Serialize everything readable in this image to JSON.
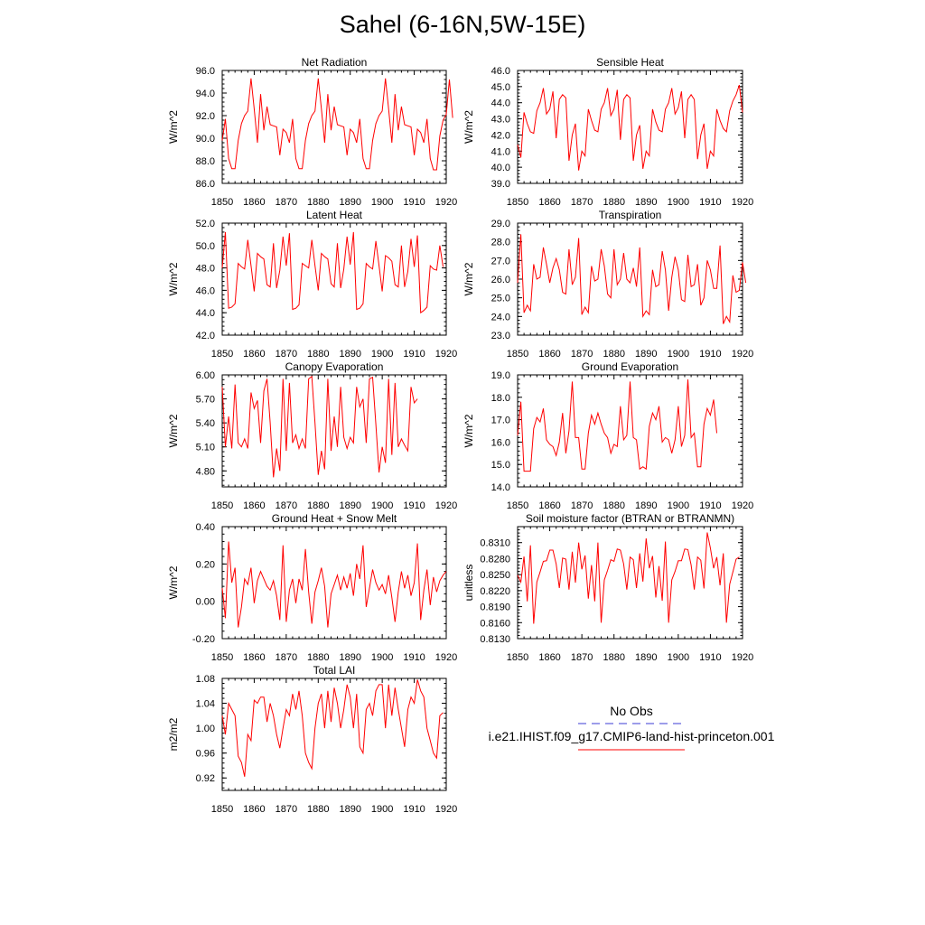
{
  "title": "Sahel (6-16N,5W-15E)",
  "legend": {
    "obs_label": "No Obs",
    "obs_color": "#3b3bd6",
    "model_label": "i.e21.IHIST.f09_g17.CMIP6-land-hist-princeton.001",
    "model_color": "#ff0000"
  },
  "chart_data": [
    {
      "type": "line",
      "title": "Net Radiation",
      "ylabel": "W/m^2",
      "xlim": [
        1850,
        1920
      ],
      "ylim": [
        86,
        96
      ],
      "xticks": [
        "1850",
        "1860",
        "1870",
        "1880",
        "1890",
        "1900",
        "1910",
        "1920"
      ],
      "yticks": [
        "86.0",
        "88.0",
        "90.0",
        "92.0",
        "94.0",
        "96.0"
      ],
      "series": [
        {
          "name": "i.e21.IHIST.f09_g17.CMIP6-land-hist-princeton.001",
          "x_start": 1850,
          "values": [
            89.8,
            91.7,
            88.2,
            87.3,
            87.3,
            89.8,
            91.3,
            92.0,
            92.4,
            95.3,
            92.6,
            89.6,
            93.9,
            90.7,
            92.8,
            91.2,
            91.1,
            91.0,
            88.5,
            90.8,
            90.5,
            89.6,
            91.7,
            88.2,
            87.3,
            87.3,
            89.8,
            91.3,
            92.0,
            92.4,
            95.3,
            92.6,
            89.6,
            93.9,
            90.7,
            92.8,
            91.2,
            91.1,
            91.0,
            88.5,
            90.8,
            90.5,
            89.6,
            91.7,
            88.2,
            87.3,
            87.3,
            89.8,
            91.3,
            92.0,
            92.4,
            95.3,
            92.6,
            89.6,
            93.9,
            90.7,
            92.8,
            91.2,
            91.1,
            91.0,
            88.5,
            90.8,
            90.5,
            89.6,
            91.7,
            88.2,
            87.2,
            87.2,
            90.2,
            91.6,
            92.1,
            95.2,
            91.8
          ]
        }
      ]
    },
    {
      "type": "line",
      "title": "Sensible Heat",
      "ylabel": "W/m^2",
      "xlim": [
        1850,
        1920
      ],
      "ylim": [
        39,
        46
      ],
      "xticks": [
        "1850",
        "1860",
        "1870",
        "1880",
        "1890",
        "1900",
        "1910",
        "1920"
      ],
      "yticks": [
        "39.0",
        "40.0",
        "41.0",
        "42.0",
        "43.0",
        "44.0",
        "45.0",
        "46.0"
      ],
      "series": [
        {
          "name": "i.e21.IHIST.f09_g17.CMIP6-land-hist-princeton.001",
          "x_start": 1850,
          "values": [
            41.4,
            40.6,
            43.4,
            42.7,
            42.2,
            42.1,
            43.5,
            44.0,
            44.9,
            43.3,
            43.6,
            44.7,
            41.8,
            44.2,
            44.5,
            44.3,
            40.4,
            42.0,
            42.7,
            39.8,
            41.0,
            40.7,
            43.6,
            42.9,
            42.3,
            42.2,
            43.6,
            44.0,
            44.9,
            43.2,
            43.6,
            44.8,
            41.7,
            44.2,
            44.5,
            44.3,
            40.4,
            42.0,
            42.6,
            39.9,
            41.0,
            40.7,
            43.6,
            42.8,
            42.3,
            42.2,
            43.6,
            44.0,
            44.9,
            43.3,
            43.7,
            44.7,
            41.8,
            44.2,
            44.5,
            44.2,
            40.5,
            42.0,
            42.7,
            39.9,
            41.0,
            40.7,
            43.6,
            42.9,
            42.4,
            42.2,
            43.5,
            44.1,
            44.5,
            45.1,
            43.4
          ]
        }
      ]
    },
    {
      "type": "line",
      "title": "Latent Heat",
      "ylabel": "W/m^2",
      "xlim": [
        1850,
        1920
      ],
      "ylim": [
        42,
        52
      ],
      "xticks": [
        "1850",
        "1860",
        "1870",
        "1880",
        "1890",
        "1900",
        "1910",
        "1920"
      ],
      "yticks": [
        "42.0",
        "44.0",
        "46.0",
        "48.0",
        "50.0",
        "52.0"
      ],
      "series": [
        {
          "name": "i.e21.IHIST.f09_g17.CMIP6-land-hist-princeton.001",
          "x_start": 1850,
          "values": [
            48.0,
            51.2,
            44.4,
            44.5,
            44.8,
            48.4,
            48.1,
            47.9,
            50.5,
            48.2,
            45.9,
            49.3,
            49.0,
            48.8,
            46.5,
            46.3,
            50.2,
            46.2,
            47.8,
            50.8,
            48.2,
            51.1,
            44.3,
            44.4,
            44.7,
            48.4,
            48.2,
            48.0,
            50.5,
            48.2,
            46.0,
            49.3,
            49.0,
            48.8,
            46.6,
            46.3,
            50.2,
            46.2,
            47.9,
            50.8,
            48.3,
            51.2,
            44.3,
            44.4,
            44.8,
            48.4,
            48.1,
            47.9,
            50.4,
            48.2,
            45.9,
            49.1,
            48.9,
            48.6,
            46.5,
            46.3,
            50.0,
            46.3,
            47.7,
            50.6,
            48.1,
            50.9,
            44.0,
            44.2,
            44.5,
            48.2,
            47.9,
            47.8,
            50.0,
            48.1
          ]
        }
      ]
    },
    {
      "type": "line",
      "title": "Transpiration",
      "ylabel": "W/m^2",
      "xlim": [
        1850,
        1920
      ],
      "ylim": [
        23,
        29
      ],
      "xticks": [
        "1850",
        "1860",
        "1870",
        "1880",
        "1890",
        "1900",
        "1910",
        "1920"
      ],
      "yticks": [
        "23.0",
        "24.0",
        "25.0",
        "26.0",
        "27.0",
        "28.0",
        "29.0"
      ],
      "series": [
        {
          "name": "i.e21.IHIST.f09_g17.CMIP6-land-hist-princeton.001",
          "x_start": 1850,
          "values": [
            25.8,
            28.4,
            24.2,
            24.6,
            24.3,
            26.8,
            26.0,
            26.1,
            27.7,
            26.8,
            25.8,
            26.6,
            27.1,
            26.5,
            25.3,
            25.2,
            27.6,
            25.7,
            26.1,
            28.2,
            24.1,
            24.5,
            24.2,
            26.7,
            25.9,
            26.0,
            27.6,
            26.7,
            25.2,
            25.0,
            27.6,
            25.7,
            26.0,
            27.4,
            26.0,
            25.8,
            26.6,
            25.6,
            27.7,
            24.0,
            24.3,
            24.1,
            26.5,
            25.6,
            25.7,
            27.5,
            26.5,
            24.3,
            26.1,
            27.2,
            26.5,
            24.9,
            24.8,
            27.3,
            25.6,
            25.7,
            26.8,
            24.6,
            25.0,
            27.0,
            26.5,
            25.5,
            25.5,
            27.8,
            23.6,
            24.0,
            23.7,
            26.2,
            25.3,
            25.4,
            26.9,
            25.8
          ]
        }
      ]
    },
    {
      "type": "line",
      "title": "Canopy Evaporation",
      "ylabel": "W/m^2",
      "xlim": [
        1850,
        1920
      ],
      "ylim": [
        4.6,
        6.0
      ],
      "xticks": [
        "1850",
        "1860",
        "1870",
        "1880",
        "1890",
        "1900",
        "1910",
        "1920"
      ],
      "yticks": [
        "4.80",
        "5.10",
        "5.40",
        "5.70",
        "6.00"
      ],
      "series": [
        {
          "name": "i.e21.IHIST.f09_g17.CMIP6-land-hist-princeton.001",
          "x_start": 1850,
          "values": [
            5.85,
            5.1,
            5.48,
            5.08,
            5.88,
            5.15,
            5.1,
            5.2,
            5.08,
            5.78,
            5.58,
            5.68,
            5.15,
            5.8,
            5.95,
            5.4,
            4.72,
            5.08,
            4.8,
            5.95,
            5.05,
            5.9,
            5.15,
            5.25,
            5.08,
            5.2,
            5.08,
            5.95,
            5.98,
            5.4,
            4.75,
            5.05,
            4.82,
            5.95,
            5.05,
            5.48,
            5.1,
            5.85,
            5.22,
            5.08,
            5.22,
            5.15,
            5.85,
            5.6,
            5.7,
            5.15,
            5.95,
            5.97,
            5.38,
            4.78,
            5.1,
            4.9,
            5.95,
            5.0,
            5.9,
            5.1,
            5.2,
            5.12,
            5.05,
            5.85,
            5.65,
            5.7
          ]
        }
      ]
    },
    {
      "type": "line",
      "title": "Ground Evaporation",
      "ylabel": "W/m^2",
      "xlim": [
        1850,
        1920
      ],
      "ylim": [
        14,
        19
      ],
      "xticks": [
        "1850",
        "1860",
        "1870",
        "1880",
        "1890",
        "1900",
        "1910",
        "1920"
      ],
      "yticks": [
        "14.0",
        "15.0",
        "16.0",
        "17.0",
        "18.0",
        "19.0"
      ],
      "series": [
        {
          "name": "i.e21.IHIST.f09_g17.CMIP6-land-hist-princeton.001",
          "x_start": 1850,
          "values": [
            16.3,
            17.8,
            14.7,
            14.7,
            14.7,
            16.6,
            17.1,
            16.9,
            17.5,
            16.1,
            15.9,
            15.8,
            15.4,
            16.0,
            17.3,
            15.5,
            16.5,
            18.7,
            16.2,
            16.2,
            14.8,
            14.8,
            16.4,
            17.2,
            16.8,
            17.3,
            16.8,
            16.4,
            16.2,
            15.5,
            15.9,
            15.8,
            17.6,
            16.1,
            16.3,
            18.7,
            16.2,
            16.1,
            14.8,
            14.9,
            14.8,
            16.7,
            17.3,
            17.0,
            17.6,
            16.0,
            16.2,
            16.1,
            15.5,
            16.1,
            17.6,
            15.8,
            16.3,
            18.8,
            16.2,
            16.4,
            14.9,
            14.9,
            16.8,
            17.5,
            17.2,
            17.9,
            16.4
          ]
        }
      ]
    },
    {
      "type": "line",
      "title": "Ground Heat + Snow Melt",
      "ylabel": "W/m^2",
      "xlim": [
        1850,
        1920
      ],
      "ylim": [
        -0.2,
        0.4
      ],
      "xticks": [
        "1850",
        "1860",
        "1870",
        "1880",
        "1890",
        "1900",
        "1910",
        "1920"
      ],
      "yticks": [
        "-0.20",
        "0.00",
        "0.20",
        "0.40"
      ],
      "series": [
        {
          "name": "i.e21.IHIST.f09_g17.CMIP6-land-hist-princeton.001",
          "x_start": 1850,
          "values": [
            0.07,
            -0.09,
            0.32,
            0.1,
            0.18,
            -0.14,
            -0.03,
            0.12,
            0.09,
            0.18,
            -0.01,
            0.11,
            0.16,
            0.12,
            0.08,
            0.06,
            0.11,
            0.03,
            -0.1,
            0.3,
            -0.11,
            0.06,
            0.12,
            -0.01,
            0.12,
            0.06,
            0.28,
            0.05,
            -0.12,
            0.05,
            0.11,
            0.18,
            0.08,
            -0.14,
            0.04,
            0.09,
            0.14,
            0.06,
            0.13,
            0.07,
            0.15,
            0.03,
            0.2,
            0.12,
            0.3,
            -0.03,
            0.07,
            0.17,
            0.1,
            0.06,
            0.09,
            0.04,
            0.14,
            0.02,
            -0.11,
            0.05,
            0.16,
            0.07,
            0.14,
            0.03,
            0.1,
            0.31,
            -0.1,
            0.06,
            0.17,
            -0.02,
            0.13,
            0.05,
            0.11,
            0.14,
            0.16
          ]
        }
      ]
    },
    {
      "type": "line",
      "title": "Soil moisture factor (BTRAN or BTRANMN)",
      "ylabel": "unitless",
      "xlim": [
        1850,
        1920
      ],
      "ylim": [
        0.813,
        0.834
      ],
      "xticks": [
        "1850",
        "1860",
        "1870",
        "1880",
        "1890",
        "1900",
        "1910",
        "1920"
      ],
      "yticks": [
        "0.8130",
        "0.8160",
        "0.8190",
        "0.8220",
        "0.8250",
        "0.8280",
        "0.8310"
      ],
      "series": [
        {
          "name": "i.e21.IHIST.f09_g17.CMIP6-land-hist-princeton.001",
          "x_start": 1850,
          "values": [
            0.8249,
            0.8236,
            0.8284,
            0.82,
            0.8305,
            0.8158,
            0.8236,
            0.8255,
            0.8275,
            0.8276,
            0.8296,
            0.8296,
            0.827,
            0.8225,
            0.8281,
            0.8279,
            0.8222,
            0.8293,
            0.8235,
            0.831,
            0.826,
            0.8286,
            0.8205,
            0.8268,
            0.82,
            0.831,
            0.816,
            0.824,
            0.8258,
            0.8278,
            0.8275,
            0.8298,
            0.8296,
            0.827,
            0.8222,
            0.8283,
            0.8278,
            0.8225,
            0.829,
            0.8237,
            0.8318,
            0.8262,
            0.8285,
            0.8207,
            0.8266,
            0.8201,
            0.8312,
            0.816,
            0.824,
            0.8256,
            0.8276,
            0.8276,
            0.8298,
            0.8297,
            0.8268,
            0.8222,
            0.8283,
            0.8277,
            0.8224,
            0.8329,
            0.83,
            0.8262,
            0.8283,
            0.823,
            0.829,
            0.816,
            0.8232,
            0.8255,
            0.8279,
            0.8283
          ]
        }
      ]
    },
    {
      "type": "line",
      "title": "Total LAI",
      "ylabel": "m2/m2",
      "xlim": [
        1850,
        1920
      ],
      "ylim": [
        0.9,
        1.08
      ],
      "xticks": [
        "1850",
        "1860",
        "1870",
        "1880",
        "1890",
        "1900",
        "1910",
        "1920"
      ],
      "yticks": [
        "0.92",
        "0.96",
        "1.00",
        "1.04",
        "1.08"
      ],
      "series": [
        {
          "name": "i.e21.IHIST.f09_g17.CMIP6-land-hist-princeton.001",
          "x_start": 1850,
          "values": [
            1.02,
            0.99,
            1.04,
            1.03,
            1.02,
            0.955,
            0.945,
            0.922,
            0.99,
            0.98,
            1.045,
            1.04,
            1.05,
            1.05,
            1.01,
            1.04,
            1.02,
            0.99,
            0.968,
            1.0,
            1.03,
            1.02,
            1.055,
            1.03,
            1.06,
            1.02,
            0.96,
            0.945,
            0.935,
            1.0,
            1.04,
            1.055,
            1.0,
            1.06,
            1.01,
            1.065,
            1.04,
            1.0,
            1.03,
            1.07,
            1.05,
            1.0,
            1.055,
            0.97,
            0.96,
            1.03,
            1.04,
            1.02,
            1.06,
            1.07,
            1.07,
            1.0,
            1.07,
            1.02,
            1.065,
            1.03,
            1.0,
            0.97,
            1.03,
            1.05,
            1.04,
            1.078,
            1.06,
            1.05,
            1.0,
            0.98,
            0.96,
            0.952,
            1.02,
            1.025
          ]
        }
      ]
    }
  ]
}
